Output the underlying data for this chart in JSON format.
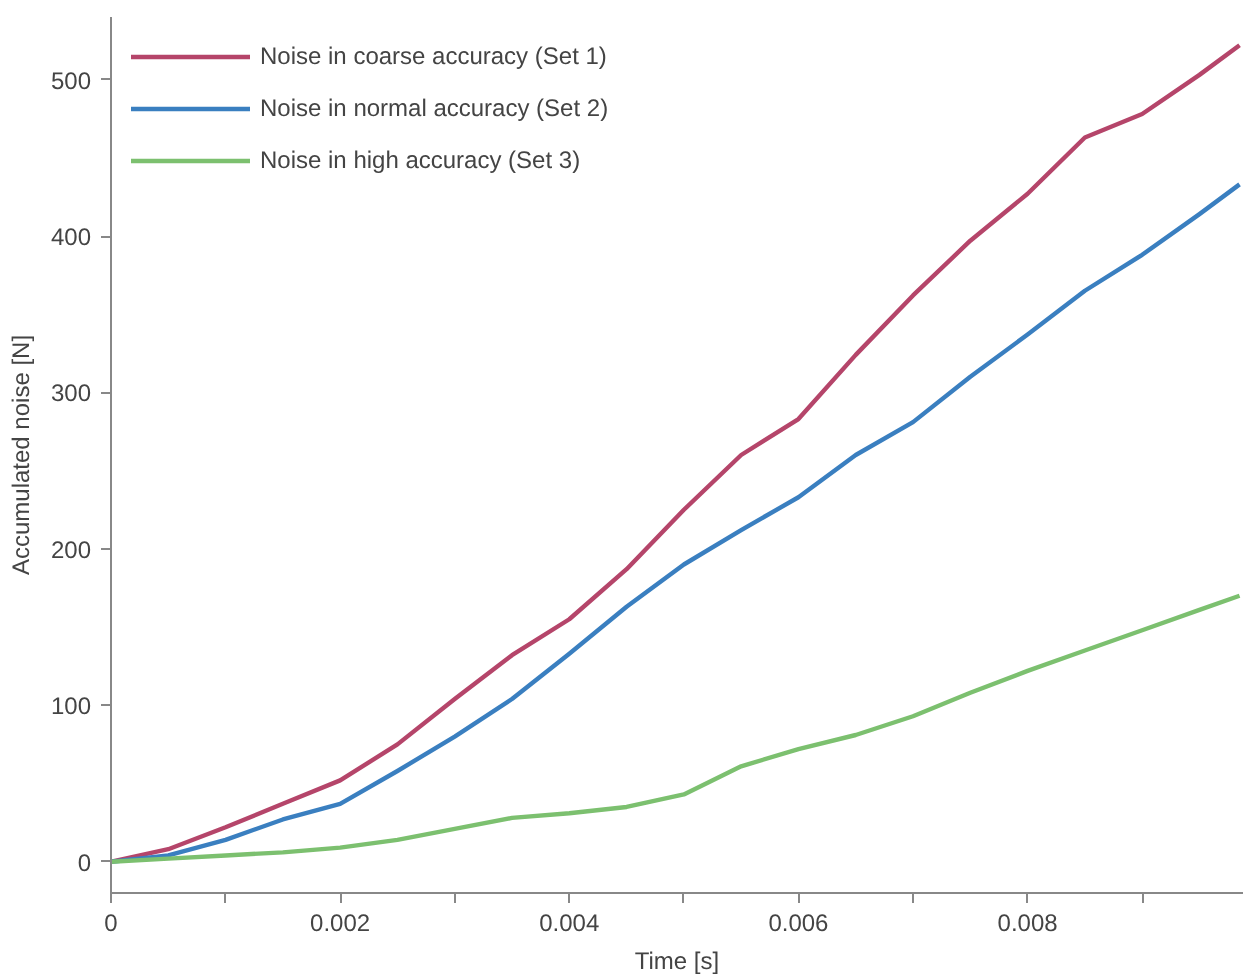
{
  "chart_data": {
    "type": "line",
    "xlabel": "Time [s]",
    "ylabel": "Accumulated noise [N]",
    "x": [
      0,
      0.0005,
      0.001,
      0.0015,
      0.002,
      0.0025,
      0.003,
      0.0035,
      0.004,
      0.0045,
      0.005,
      0.0055,
      0.006,
      0.0065,
      0.007,
      0.0075,
      0.008,
      0.0085,
      0.009,
      0.0095,
      0.00985
    ],
    "series": [
      {
        "name": "Noise in coarse accuracy (Set 1)",
        "color": "#b5456a",
        "values": [
          0,
          8,
          22,
          37,
          52,
          75,
          104,
          132,
          155,
          187,
          225,
          260,
          283,
          324,
          362,
          397,
          427,
          463,
          478,
          503,
          522
        ]
      },
      {
        "name": "Noise in normal accuracy (Set 2)",
        "color": "#3a7fc0",
        "values": [
          0,
          4,
          14,
          27,
          37,
          58,
          80,
          104,
          133,
          163,
          190,
          212,
          233,
          260,
          281,
          310,
          337,
          365,
          388,
          414,
          433
        ]
      },
      {
        "name": "Noise in high accuracy (Set 3)",
        "color": "#7cc06f",
        "values": [
          0,
          2,
          4,
          6,
          9,
          14,
          21,
          28,
          31,
          35,
          43,
          61,
          72,
          81,
          93,
          108,
          122,
          135,
          148,
          161,
          170
        ]
      }
    ],
    "xlim": [
      0,
      0.00988
    ],
    "ylim": [
      -20,
      540
    ],
    "xticks": [
      0,
      {
        "value": 0.001,
        "label": null
      },
      0.002,
      {
        "value": 0.003,
        "label": null
      },
      0.004,
      {
        "value": 0.005,
        "label": null
      },
      0.006,
      {
        "value": 0.007,
        "label": null
      },
      0.008,
      {
        "value": 0.009,
        "label": null
      }
    ],
    "yticks": [
      0,
      100,
      200,
      300,
      400,
      500
    ],
    "grid": false,
    "legend": "top left",
    "marker": "none",
    "line_style": "solid"
  }
}
